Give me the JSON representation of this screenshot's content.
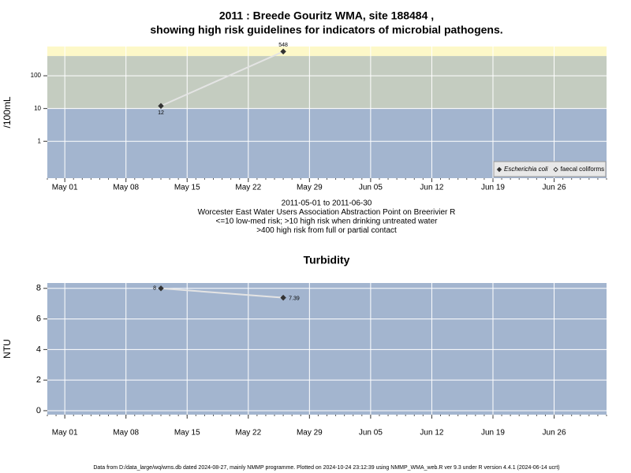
{
  "chart_data": [
    {
      "type": "line",
      "title": "2011 : Breede Gouritz WMA, site 188484 ,",
      "subtitle": "showing high risk guidelines for indicators of microbial pathogens.",
      "y_label": "/100mL",
      "log_y": true,
      "ylim": [
        0.075,
        780
      ],
      "yticks": [
        1,
        10,
        100
      ],
      "xlim": [
        "Apr 29",
        "Jul 02"
      ],
      "xticks": [
        "May 01",
        "May 08",
        "May 15",
        "May 22",
        "May 29",
        "Jun 05",
        "Jun 12",
        "Jun 19",
        "Jun 26"
      ],
      "grid": true,
      "bands": [
        {
          "to": 10,
          "color": "#a3b5cf"
        },
        {
          "from": 10,
          "to": 400,
          "color": "#c4ccc0"
        },
        {
          "from": 400,
          "color": "#fdf8c8"
        }
      ],
      "x": [
        "May 12",
        "May 26"
      ],
      "series": [
        {
          "name": "Escherichia coli",
          "color": "#333333",
          "line_color": "#e4e4e4",
          "marker": "filled",
          "values": [
            12,
            548
          ]
        },
        {
          "name": "faecal coliforms",
          "color": "#333333",
          "marker": "open",
          "values": [
            null,
            null
          ]
        }
      ],
      "legend": "bottom-right",
      "notes": [
        "2011-05-01 to 2011-06-30",
        "Worcester East Water Users Association Abstraction Point on Breerivier R",
        "<=10 low-med risk; >10 high risk when drinking untreated water",
        ">400 high risk from full or partial contact"
      ]
    },
    {
      "type": "line",
      "title": "Turbidity",
      "y_label": "NTU",
      "log_y": false,
      "ylim": [
        -0.26,
        8.35
      ],
      "yticks": [
        0,
        2,
        4,
        6,
        8
      ],
      "xlim": [
        "Apr 29",
        "Jul 02"
      ],
      "xticks": [
        "May 01",
        "May 08",
        "May 15",
        "May 22",
        "May 29",
        "Jun 05",
        "Jun 12",
        "Jun 19",
        "Jun 26"
      ],
      "grid": true,
      "background": "#a3b5cf",
      "x": [
        "May 12",
        "May 26"
      ],
      "series": [
        {
          "name": "Turbidity",
          "color": "#333333",
          "line_color": "#e4e4e4",
          "marker": "filled",
          "values": [
            8,
            7.39
          ]
        }
      ]
    }
  ],
  "footer": "Data from D:/data_large/wq/wms.db dated 2024-08-27, mainly NMMP programme. Plotted on 2024-10-24 23:12:39 using NMMP_WMA_web.R ver 9.3 under R version 4.4.1 (2024-06-14 ucrt)"
}
